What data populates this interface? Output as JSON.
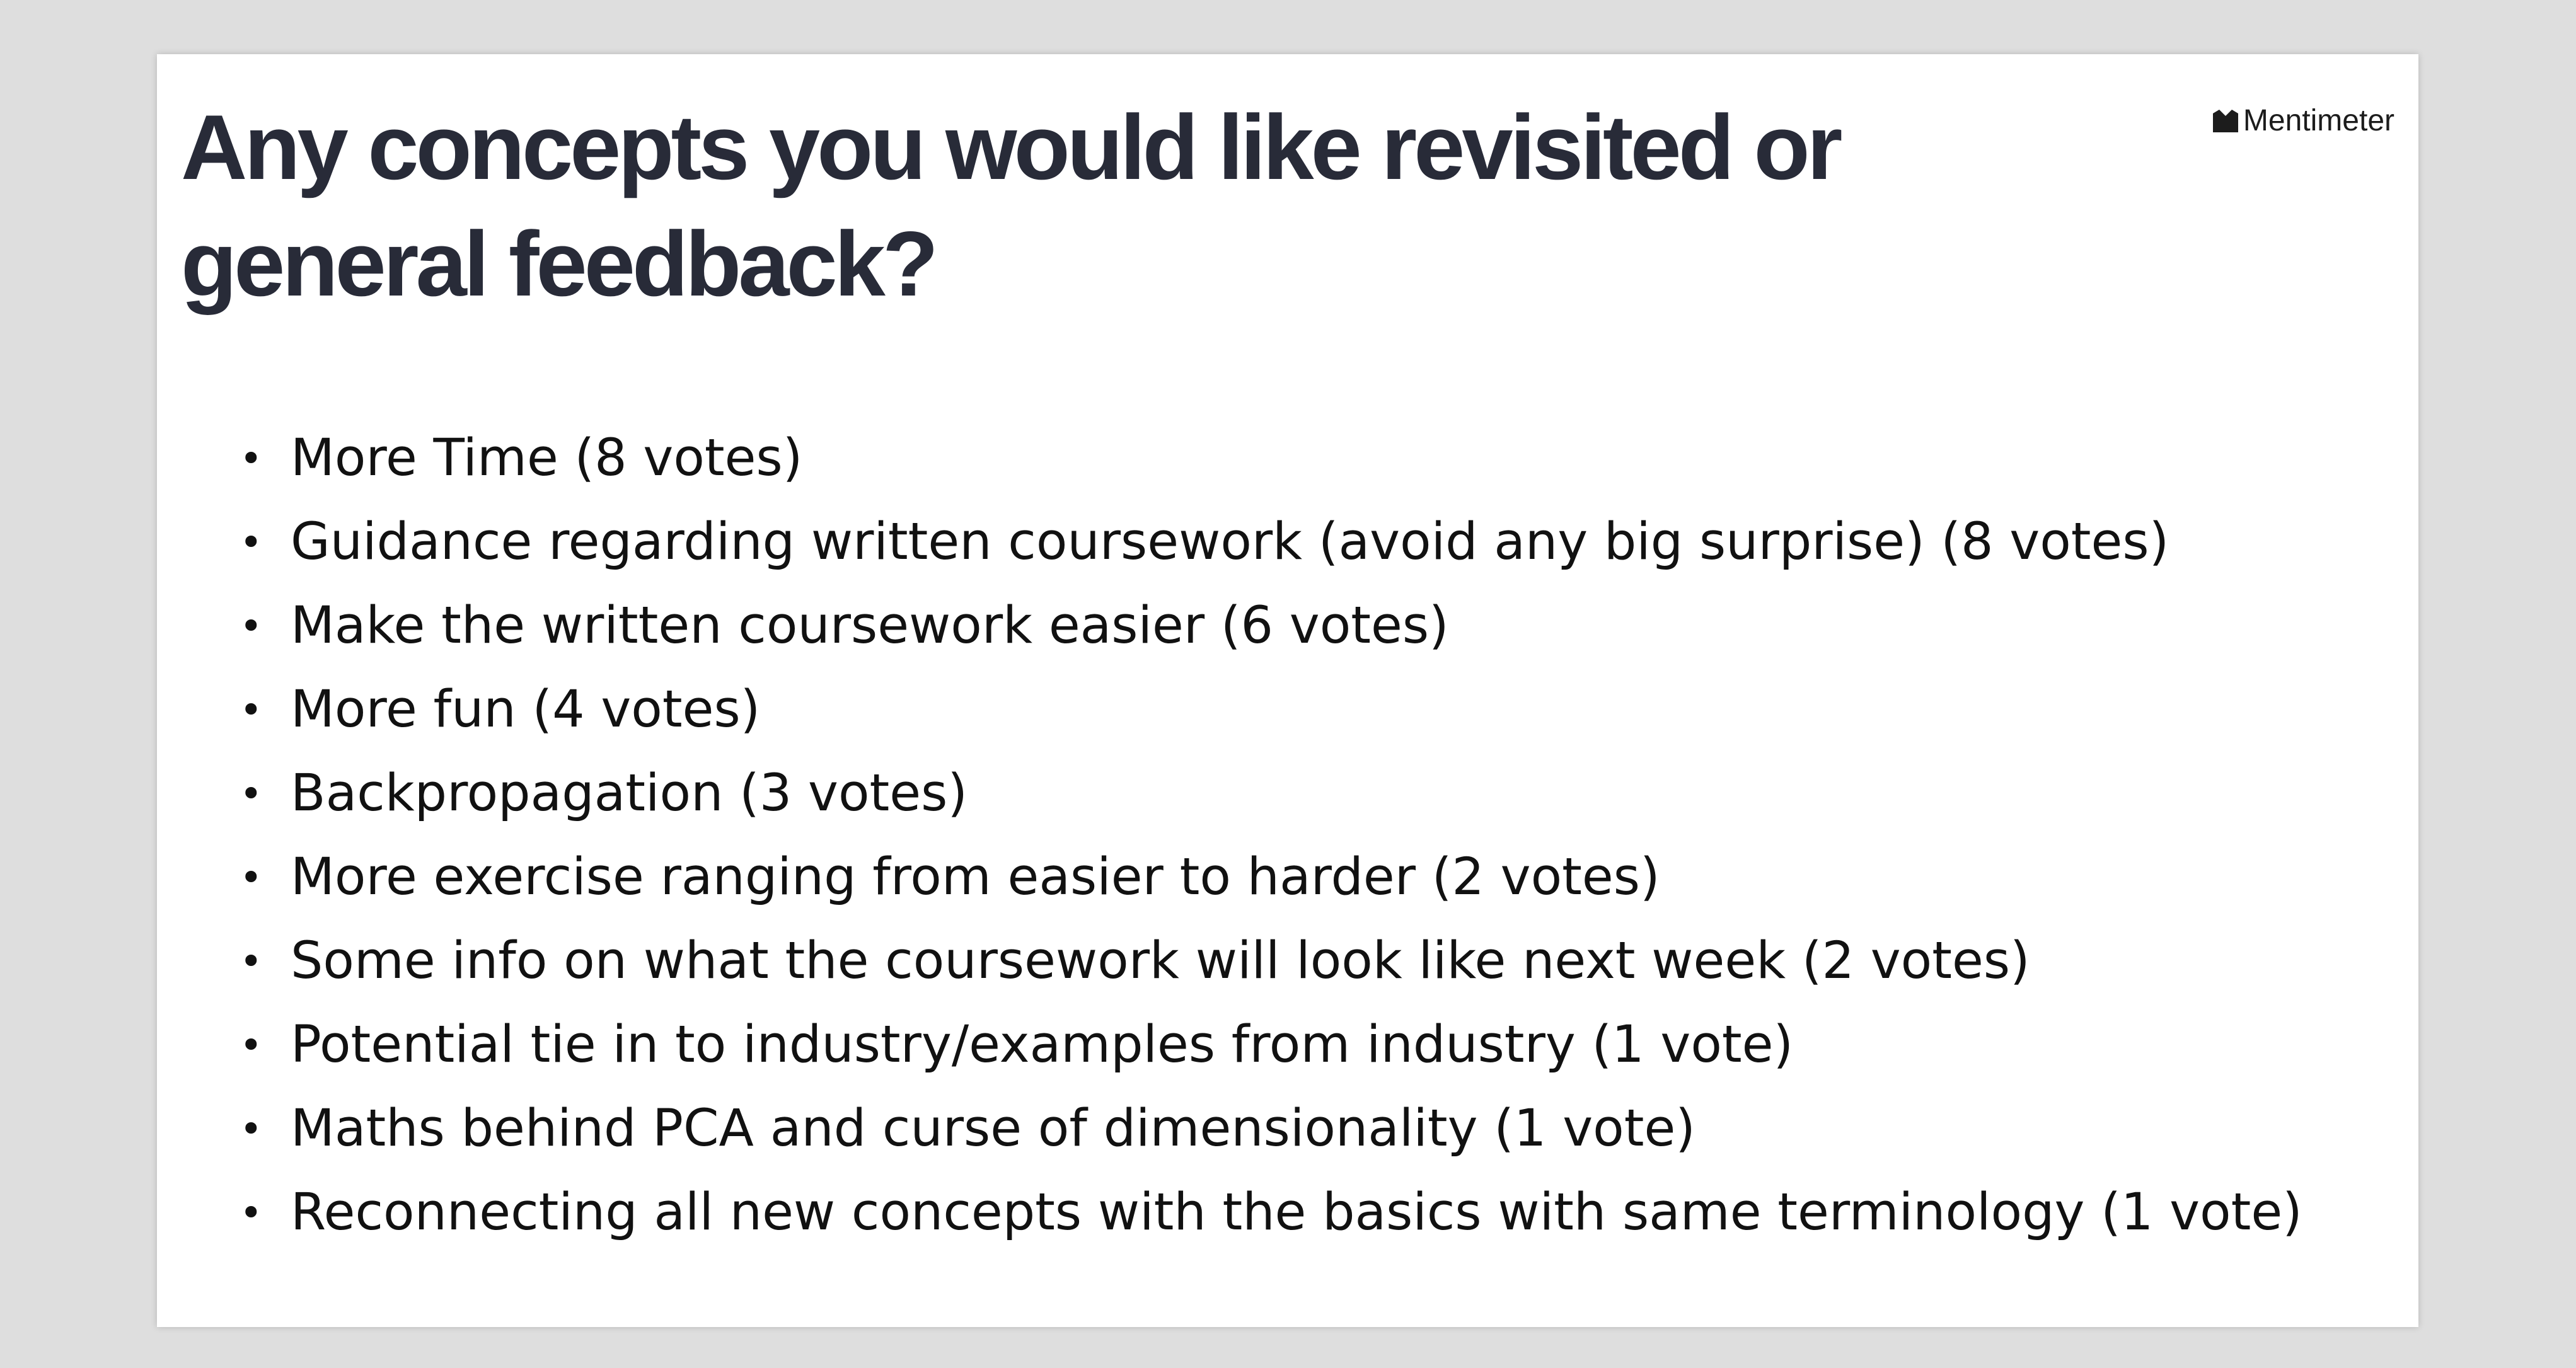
{
  "slide": {
    "title": "Any concepts you would like revisited or general feedback?",
    "brand_name": "Mentimeter",
    "brand_icon": "mentimeter-logo-icon",
    "bullet_glyph": "•",
    "items": [
      "More Time (8 votes)",
      "Guidance regarding written coursework (avoid any big surprise) (8 votes)",
      "Make the written coursework easier (6 votes)",
      "More fun (4 votes)",
      "Backpropagation (3 votes)",
      "More exercise ranging from easier to harder (2 votes)",
      "Some info on what the coursework will look like next week (2 votes)",
      "Potential tie in to industry/examples from industry (1 vote)",
      "Maths behind PCA and curse of dimensionality (1 vote)",
      "Reconnecting all new concepts with the basics with same terminology (1 vote)"
    ]
  },
  "colors": {
    "background": "#dedede",
    "slide": "#ffffff",
    "title": "#282b38",
    "text": "#111111"
  }
}
